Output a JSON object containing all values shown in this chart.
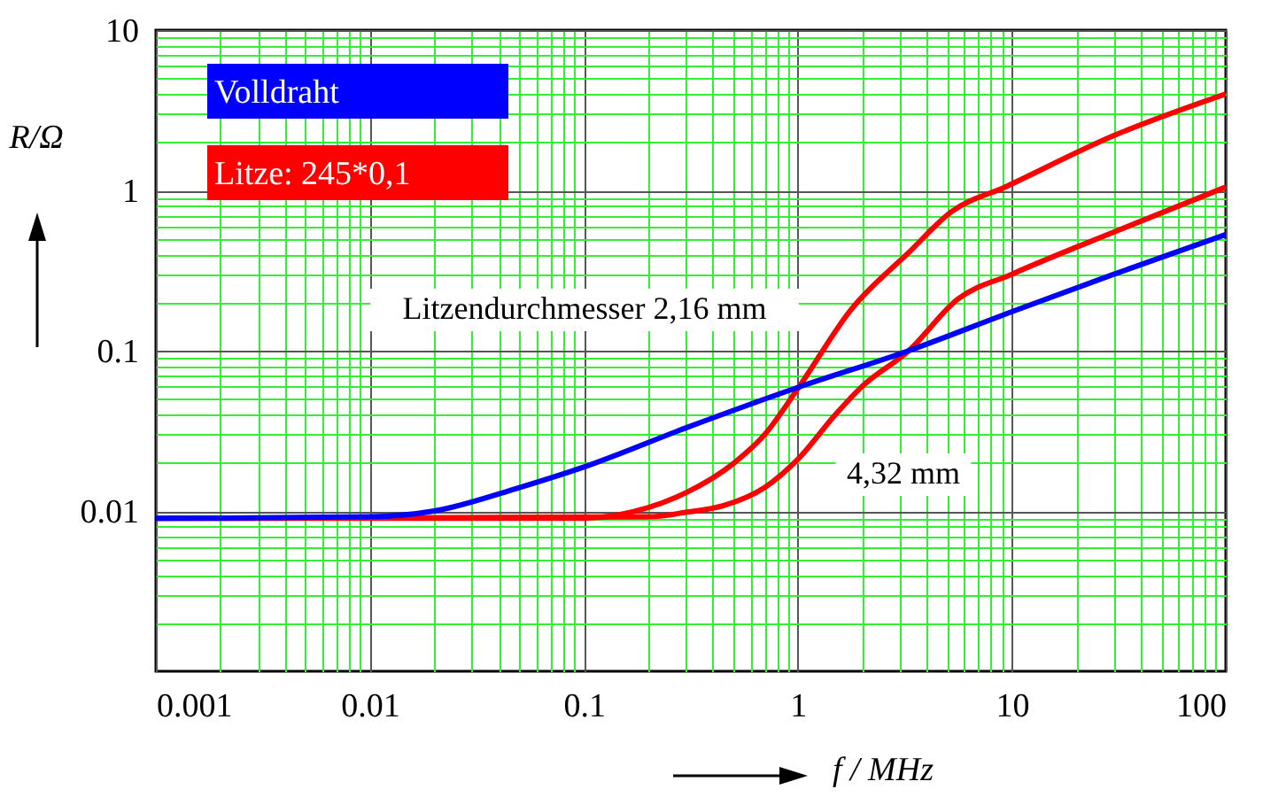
{
  "chart_data": {
    "type": "line",
    "xlabel": "f / MHz",
    "ylabel": "R/Ω",
    "log": "xy",
    "grid": true,
    "legend": "top left",
    "xlim": [
      0.001,
      100
    ],
    "ylim": [
      0.001,
      10
    ],
    "xticks": [
      0.001,
      {
        "value": 0.002,
        "label": null
      },
      {
        "value": 0.003,
        "label": null
      },
      {
        "value": 0.004,
        "label": null
      },
      {
        "value": 0.005,
        "label": null
      },
      {
        "value": 0.006,
        "label": null
      },
      {
        "value": 0.007,
        "label": null
      },
      {
        "value": 0.008,
        "label": null
      },
      {
        "value": 0.009,
        "label": null
      },
      0.01,
      {
        "value": 0.02,
        "label": null
      },
      {
        "value": 0.03,
        "label": null
      },
      {
        "value": 0.04,
        "label": null
      },
      {
        "value": 0.05,
        "label": null
      },
      {
        "value": 0.06,
        "label": null
      },
      {
        "value": 0.07,
        "label": null
      },
      {
        "value": 0.08,
        "label": null
      },
      {
        "value": 0.09,
        "label": null
      },
      0.1,
      {
        "value": 0.2,
        "label": null
      },
      {
        "value": 0.3,
        "label": null
      },
      {
        "value": 0.4,
        "label": null
      },
      {
        "value": 0.5,
        "label": null
      },
      {
        "value": 0.6,
        "label": null
      },
      {
        "value": 0.7,
        "label": null
      },
      {
        "value": 0.8,
        "label": null
      },
      {
        "value": 0.9,
        "label": null
      },
      1,
      {
        "value": 2,
        "label": null
      },
      {
        "value": 3,
        "label": null
      },
      {
        "value": 4,
        "label": null
      },
      {
        "value": 5,
        "label": null
      },
      {
        "value": 6,
        "label": null
      },
      {
        "value": 7,
        "label": null
      },
      {
        "value": 8,
        "label": null
      },
      {
        "value": 9,
        "label": null
      },
      10,
      {
        "value": 20,
        "label": null
      },
      {
        "value": 30,
        "label": null
      },
      {
        "value": 40,
        "label": null
      },
      {
        "value": 50,
        "label": null
      },
      {
        "value": 60,
        "label": null
      },
      {
        "value": 70,
        "label": null
      },
      {
        "value": 80,
        "label": null
      },
      {
        "value": 90,
        "label": null
      },
      100
    ],
    "yticks": [
      {
        "value": 0.002,
        "label": null
      },
      {
        "value": 0.003,
        "label": null
      },
      {
        "value": 0.004,
        "label": null
      },
      {
        "value": 0.005,
        "label": null
      },
      {
        "value": 0.006,
        "label": null
      },
      {
        "value": 0.007,
        "label": null
      },
      {
        "value": 0.008,
        "label": null
      },
      {
        "value": 0.009,
        "label": null
      },
      0.01,
      {
        "value": 0.02,
        "label": null
      },
      {
        "value": 0.03,
        "label": null
      },
      {
        "value": 0.04,
        "label": null
      },
      {
        "value": 0.05,
        "label": null
      },
      {
        "value": 0.06,
        "label": null
      },
      {
        "value": 0.07,
        "label": null
      },
      {
        "value": 0.08,
        "label": null
      },
      {
        "value": 0.09,
        "label": null
      },
      0.1,
      {
        "value": 0.2,
        "label": null
      },
      {
        "value": 0.3,
        "label": null
      },
      {
        "value": 0.4,
        "label": null
      },
      {
        "value": 0.5,
        "label": null
      },
      {
        "value": 0.6,
        "label": null
      },
      {
        "value": 0.7,
        "label": null
      },
      {
        "value": 0.8,
        "label": null
      },
      {
        "value": 0.9,
        "label": null
      },
      1,
      {
        "value": 2,
        "label": null
      },
      {
        "value": 3,
        "label": null
      },
      {
        "value": 4,
        "label": null
      },
      {
        "value": 5,
        "label": null
      },
      {
        "value": 6,
        "label": null
      },
      {
        "value": 7,
        "label": null
      },
      {
        "value": 8,
        "label": null
      },
      {
        "value": 9,
        "label": null
      },
      10
    ],
    "series": [
      {
        "name": "Volldraht",
        "color": "#0000ff",
        "x": [
          0.001,
          0.01,
          0.02,
          0.05,
          0.1,
          0.3,
          1,
          3.3,
          10,
          30,
          100
        ],
        "values": [
          0.009,
          0.0092,
          0.01,
          0.014,
          0.0188,
          0.033,
          0.059,
          0.1,
          0.175,
          0.3,
          0.53
        ]
      },
      {
        "name": "Litze: 245*0,1",
        "color": "#ff0000",
        "x": [
          0.001,
          0.1,
          0.2,
          0.3,
          0.5,
          0.7,
          1,
          1.77,
          3.3,
          5.25,
          9.3,
          30,
          100
        ],
        "values": [
          0.009,
          0.009,
          0.0105,
          0.013,
          0.0198,
          0.03,
          0.058,
          0.18,
          0.41,
          0.74,
          1.05,
          2.2,
          4.0
        ]
      },
      {
        "color": "#ff0000",
        "x": [
          0.001,
          0.2,
          0.3,
          0.45,
          0.7,
          1,
          1.5,
          2,
          3.3,
          5.6,
          10,
          30,
          100
        ],
        "values": [
          0.009,
          0.0092,
          0.0098,
          0.0108,
          0.014,
          0.021,
          0.04,
          0.06,
          0.1,
          0.21,
          0.3,
          0.55,
          1.05
        ]
      }
    ],
    "annotations": [
      "Litzendurchmesser 2,16 mm",
      "4,32 mm"
    ]
  }
}
